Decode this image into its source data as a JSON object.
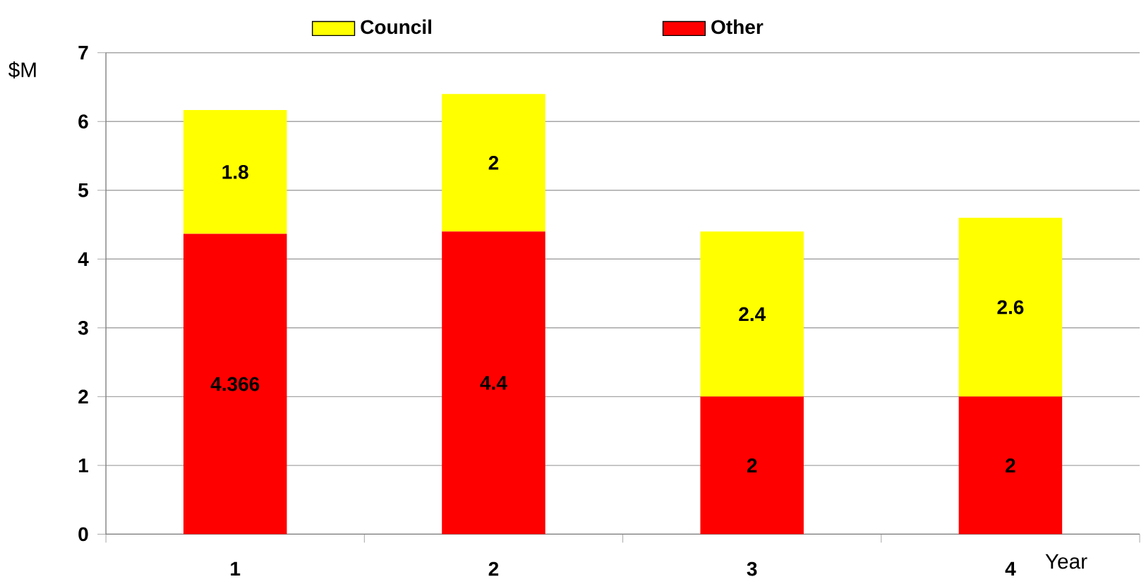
{
  "chart_data": {
    "type": "bar",
    "stacked": true,
    "categories": [
      "1",
      "2",
      "3",
      "4"
    ],
    "series": [
      {
        "name": "Other",
        "color": "#ff0000",
        "values": [
          4.366,
          4.4,
          2,
          2
        ],
        "value_labels": [
          "4.366",
          "4.4",
          "2",
          "2"
        ]
      },
      {
        "name": "Council",
        "color": "#ffff00",
        "values": [
          1.8,
          2,
          2.4,
          2.6
        ],
        "value_labels": [
          "1.8",
          "2",
          "2.4",
          "2.6"
        ]
      }
    ],
    "xlabel": "Year",
    "ylabel": "$M",
    "ylim": [
      0,
      7
    ],
    "yticks": [
      0,
      1,
      2,
      3,
      4,
      5,
      6,
      7
    ],
    "grid": "y",
    "legend": "top"
  }
}
